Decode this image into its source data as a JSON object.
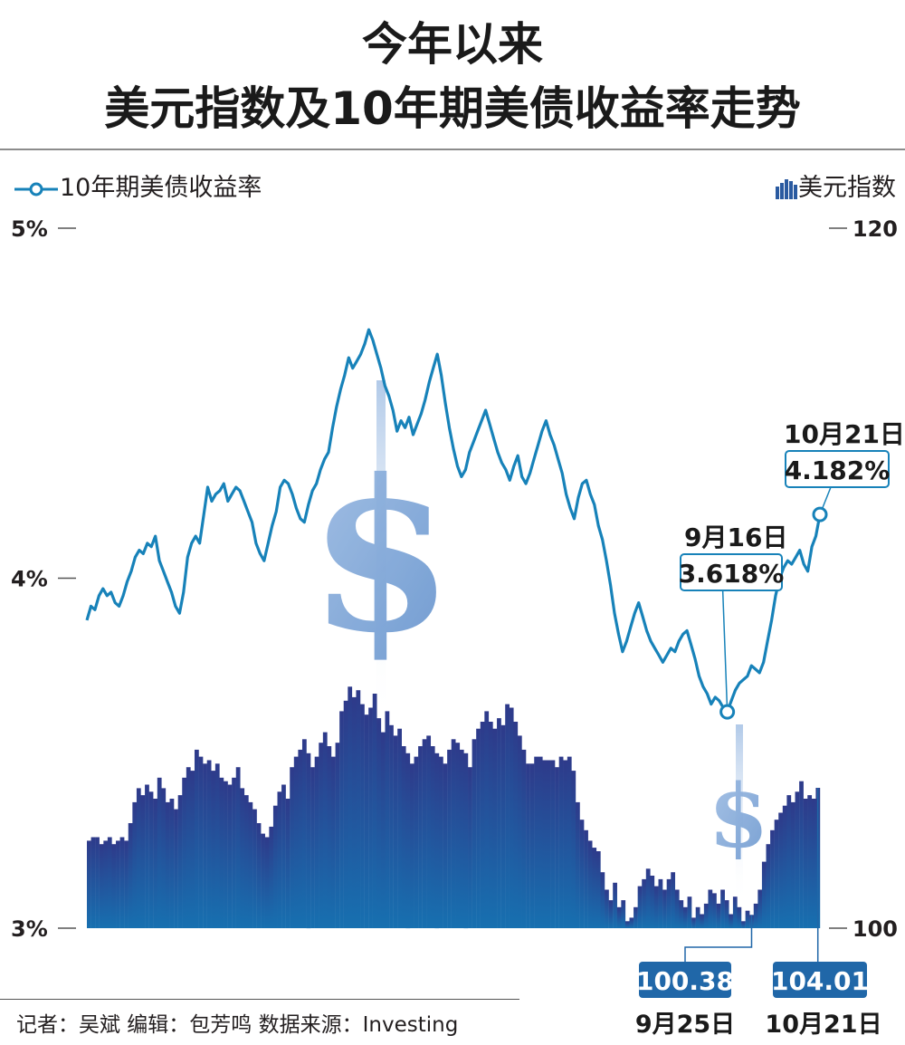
{
  "title": {
    "line1": "今年以来",
    "line2": "美元指数及10年期美债收益率走势"
  },
  "legend": {
    "yield_label": "10年期美债收益率",
    "dxy_label": "美元指数"
  },
  "colors": {
    "yield_line": "#1782b9",
    "bar_top": "#2e3a8a",
    "bar_bottom": "#1770b0",
    "callout_bg": "#2067a8",
    "dollar": "#5f8fcb"
  },
  "annotations": [
    {
      "date": "9月16日",
      "value": "3.618%"
    },
    {
      "date": "10月21日",
      "value": "4.182%"
    }
  ],
  "bar_callouts": [
    {
      "date": "9月25日",
      "value": "100.38"
    },
    {
      "date": "10月21日",
      "value": "104.01"
    }
  ],
  "footer": "记者：吴斌  编辑：包芳鸣  数据来源：Investing",
  "chart_data": {
    "type": "line",
    "title": "今年以来 美元指数及10年期美债收益率走势",
    "left_axis": {
      "ticks": [
        "5%",
        "4%",
        "3%"
      ],
      "range": [
        3,
        5
      ],
      "unit": "%"
    },
    "right_axis": {
      "ticks": [
        "120",
        "100"
      ],
      "range": [
        100,
        120
      ]
    },
    "series": [
      {
        "name": "10年期美债收益率",
        "kind": "line",
        "axis": "left",
        "values": [
          3.88,
          3.92,
          3.91,
          3.95,
          3.97,
          3.95,
          3.96,
          3.93,
          3.92,
          3.95,
          3.99,
          4.02,
          4.06,
          4.08,
          4.07,
          4.1,
          4.09,
          4.12,
          4.05,
          4.02,
          3.99,
          3.96,
          3.92,
          3.9,
          3.96,
          4.06,
          4.1,
          4.12,
          4.1,
          4.18,
          4.26,
          4.22,
          4.24,
          4.25,
          4.27,
          4.22,
          4.24,
          4.26,
          4.25,
          4.22,
          4.19,
          4.16,
          4.1,
          4.07,
          4.05,
          4.1,
          4.15,
          4.19,
          4.26,
          4.28,
          4.27,
          4.24,
          4.2,
          4.17,
          4.16,
          4.21,
          4.25,
          4.27,
          4.31,
          4.34,
          4.36,
          4.43,
          4.49,
          4.54,
          4.58,
          4.63,
          4.6,
          4.62,
          4.64,
          4.67,
          4.71,
          4.68,
          4.64,
          4.6,
          4.55,
          4.52,
          4.48,
          4.42,
          4.45,
          4.43,
          4.46,
          4.41,
          4.44,
          4.47,
          4.51,
          4.56,
          4.6,
          4.64,
          4.58,
          4.5,
          4.43,
          4.37,
          4.32,
          4.29,
          4.31,
          4.36,
          4.39,
          4.42,
          4.45,
          4.48,
          4.44,
          4.4,
          4.36,
          4.33,
          4.31,
          4.28,
          4.32,
          4.35,
          4.29,
          4.27,
          4.3,
          4.34,
          4.38,
          4.42,
          4.45,
          4.41,
          4.38,
          4.34,
          4.3,
          4.24,
          4.2,
          4.17,
          4.23,
          4.27,
          4.28,
          4.24,
          4.21,
          4.15,
          4.11,
          4.05,
          3.98,
          3.9,
          3.84,
          3.79,
          3.82,
          3.86,
          3.9,
          3.93,
          3.89,
          3.85,
          3.82,
          3.8,
          3.78,
          3.76,
          3.78,
          3.8,
          3.79,
          3.82,
          3.84,
          3.85,
          3.81,
          3.77,
          3.72,
          3.69,
          3.67,
          3.64,
          3.66,
          3.65,
          3.63,
          3.618,
          3.65,
          3.68,
          3.7,
          3.71,
          3.72,
          3.75,
          3.74,
          3.73,
          3.76,
          3.82,
          3.88,
          3.95,
          4.0,
          4.03,
          4.05,
          4.04,
          4.06,
          4.08,
          4.04,
          4.02,
          4.09,
          4.12,
          4.182
        ]
      },
      {
        "name": "美元指数",
        "kind": "bar",
        "axis": "right",
        "values": [
          102.5,
          102.6,
          102.6,
          102.4,
          102.5,
          102.6,
          102.4,
          102.5,
          102.6,
          102.5,
          103.0,
          103.6,
          104.0,
          103.8,
          104.1,
          103.9,
          103.7,
          104.3,
          104.0,
          103.6,
          103.7,
          103.4,
          103.8,
          104.3,
          104.6,
          104.5,
          105.1,
          104.9,
          104.7,
          104.8,
          104.5,
          104.7,
          104.3,
          104.2,
          104.1,
          104.3,
          104.6,
          104.0,
          103.8,
          103.6,
          103.4,
          103.0,
          102.7,
          102.6,
          102.9,
          103.5,
          103.9,
          104.1,
          103.7,
          104.6,
          104.9,
          105.1,
          105.4,
          105.0,
          104.6,
          104.9,
          105.3,
          105.6,
          105.2,
          104.9,
          105.3,
          106.2,
          106.5,
          106.9,
          106.6,
          106.8,
          106.4,
          106.1,
          106.3,
          106.7,
          106.0,
          105.6,
          106.2,
          105.8,
          105.5,
          105.7,
          105.2,
          105.0,
          104.7,
          104.9,
          105.2,
          105.4,
          105.5,
          105.2,
          105.0,
          104.9,
          104.7,
          105.1,
          105.4,
          105.3,
          105.1,
          105.0,
          104.6,
          105.4,
          105.7,
          105.9,
          106.2,
          105.9,
          105.7,
          106.0,
          105.8,
          106.4,
          106.3,
          105.9,
          105.5,
          105.1,
          104.7,
          104.7,
          104.9,
          104.9,
          104.8,
          104.8,
          104.8,
          104.6,
          104.9,
          104.8,
          104.9,
          104.5,
          103.6,
          103.1,
          102.8,
          102.5,
          102.3,
          102.2,
          101.6,
          101.1,
          100.8,
          101.3,
          100.6,
          100.8,
          100.2,
          100.3,
          100.6,
          101.2,
          101.4,
          101.7,
          101.5,
          101.2,
          101.4,
          101.1,
          101.4,
          101.6,
          101.1,
          100.8,
          100.6,
          100.9,
          100.3,
          100.6,
          100.4,
          100.7,
          101.1,
          101.0,
          100.7,
          101.1,
          100.8,
          100.4,
          100.9,
          100.6,
          100.2,
          100.5,
          100.38,
          100.7,
          101.1,
          101.9,
          102.4,
          102.8,
          103.1,
          103.3,
          103.5,
          103.8,
          103.6,
          103.9,
          104.2,
          103.7,
          103.8,
          103.7,
          104.01
        ]
      }
    ],
    "grid": false,
    "legend": "top"
  }
}
